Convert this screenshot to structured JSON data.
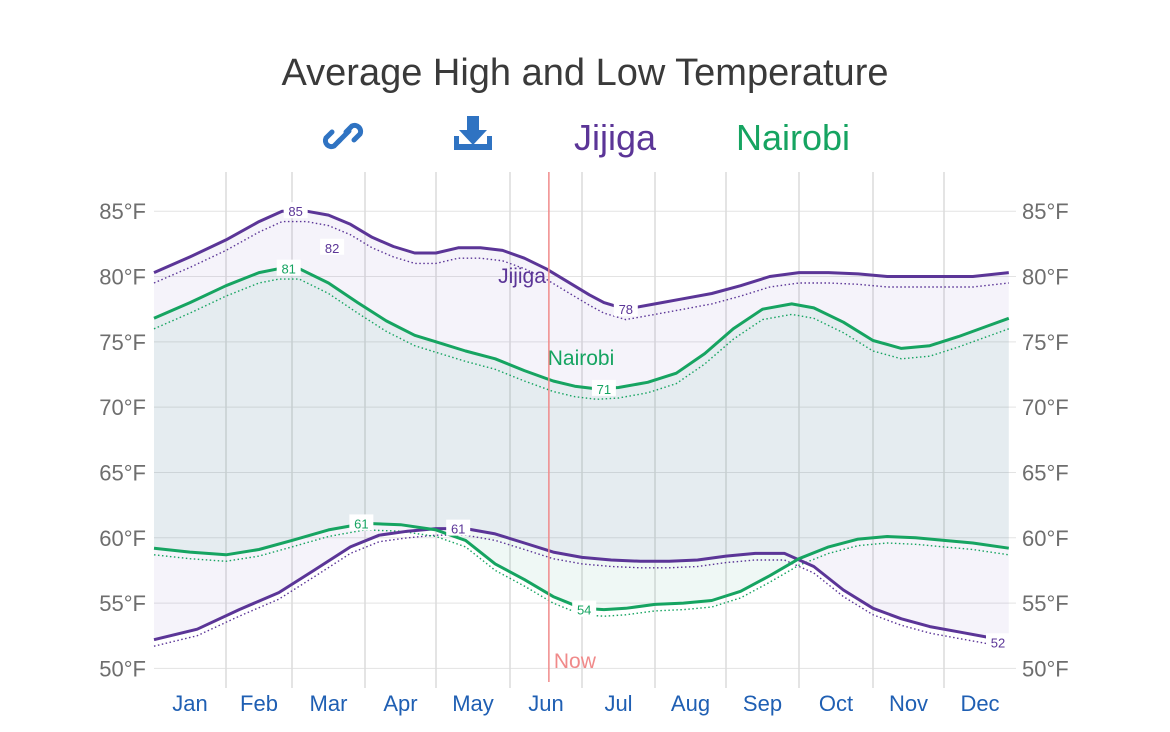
{
  "chart_data": {
    "type": "line",
    "title": "Average High and Low Temperature",
    "toolbar": {
      "link_icon": "link-icon",
      "download_icon": "download-icon"
    },
    "months": [
      "Jan",
      "Feb",
      "Mar",
      "Apr",
      "May",
      "Jun",
      "Jul",
      "Aug",
      "Sep",
      "Oct",
      "Nov",
      "Dec"
    ],
    "y_unit": "°F",
    "ylim": [
      48.5,
      88
    ],
    "yticks": [
      50,
      55,
      60,
      65,
      70,
      75,
      80,
      85
    ],
    "grid": true,
    "now_label": "Now",
    "now_position": 5.54,
    "colors": {
      "Jijiga": "#5b3597",
      "Nairobi": "#16a461",
      "now": "#f08a8a"
    },
    "series": [
      {
        "name": "Jijiga",
        "inline_label": "Jijiga",
        "high_x": [
          0,
          0.5,
          1,
          1.5,
          1.85,
          2.2,
          2.5,
          2.8,
          3.1,
          3.4,
          3.7,
          4.0,
          4.3,
          4.6,
          4.9,
          5.2,
          5.5,
          5.8,
          6.1,
          6.3,
          6.6,
          7.0,
          7.4,
          7.8,
          8.2,
          8.6,
          9.0,
          9.4,
          9.8,
          10.2,
          10.6,
          11.0,
          11.4,
          11.9
        ],
        "high_values": [
          80.3,
          81.5,
          82.8,
          84.2,
          85.0,
          85.0,
          84.7,
          84.0,
          83.0,
          82.3,
          81.8,
          81.8,
          82.2,
          82.2,
          82.0,
          81.4,
          80.6,
          79.6,
          78.6,
          78.0,
          77.5,
          77.9,
          78.3,
          78.7,
          79.3,
          80.0,
          80.3,
          80.3,
          80.2,
          80.0,
          80.0,
          80.0,
          80.0,
          80.3
        ],
        "low_x": [
          0,
          0.6,
          1.2,
          1.8,
          2.3,
          2.8,
          3.2,
          3.6,
          4.0,
          4.4,
          4.8,
          5.2,
          5.6,
          6.0,
          6.4,
          6.8,
          7.2,
          7.6,
          8.0,
          8.4,
          8.8,
          9.2,
          9.6,
          10.0,
          10.4,
          10.8,
          11.2,
          11.6,
          11.9
        ],
        "low_values": [
          52.2,
          53.0,
          54.5,
          55.8,
          57.5,
          59.3,
          60.2,
          60.5,
          60.7,
          60.7,
          60.3,
          59.6,
          58.9,
          58.5,
          58.3,
          58.2,
          58.2,
          58.3,
          58.6,
          58.8,
          58.8,
          57.8,
          56.0,
          54.6,
          53.8,
          53.2,
          52.8,
          52.4,
          52.2
        ],
        "high_max_label": "85",
        "high_min_label": "78",
        "low_max_label": "61",
        "low_min_label": "52"
      },
      {
        "name": "Nairobi",
        "inline_label": "Nairobi",
        "high_x": [
          0,
          0.5,
          1,
          1.5,
          1.8,
          2.1,
          2.5,
          2.9,
          3.3,
          3.7,
          4.0,
          4.4,
          4.8,
          5.2,
          5.6,
          5.9,
          6.2,
          6.5,
          6.9,
          7.3,
          7.7,
          8.1,
          8.5,
          8.9,
          9.2,
          9.6,
          10.0,
          10.4,
          10.8,
          11.2,
          11.6,
          11.9
        ],
        "high_values": [
          76.8,
          78.0,
          79.3,
          80.3,
          80.6,
          80.6,
          79.5,
          78.0,
          76.6,
          75.5,
          75.0,
          74.3,
          73.7,
          72.8,
          72.0,
          71.6,
          71.4,
          71.5,
          71.9,
          72.6,
          74.1,
          76.0,
          77.5,
          77.9,
          77.6,
          76.5,
          75.1,
          74.5,
          74.7,
          75.4,
          76.2,
          76.8
        ],
        "low_x": [
          0,
          0.5,
          1,
          1.5,
          2.0,
          2.5,
          3.0,
          3.5,
          4.0,
          4.4,
          4.8,
          5.2,
          5.6,
          6.0,
          6.3,
          6.6,
          7.0,
          7.4,
          7.8,
          8.2,
          8.6,
          9.0,
          9.4,
          9.8,
          10.2,
          10.6,
          11.0,
          11.4,
          11.9
        ],
        "low_values": [
          59.2,
          58.9,
          58.7,
          59.1,
          59.8,
          60.6,
          61.1,
          61.0,
          60.6,
          59.8,
          58.0,
          56.8,
          55.5,
          54.6,
          54.5,
          54.6,
          54.9,
          55.0,
          55.2,
          55.9,
          57.1,
          58.4,
          59.3,
          59.9,
          60.1,
          60.0,
          59.8,
          59.6,
          59.2
        ],
        "high_max_label": "81",
        "high_min_label": "71",
        "low_max_label": "61",
        "low_min_label": "54"
      }
    ]
  }
}
